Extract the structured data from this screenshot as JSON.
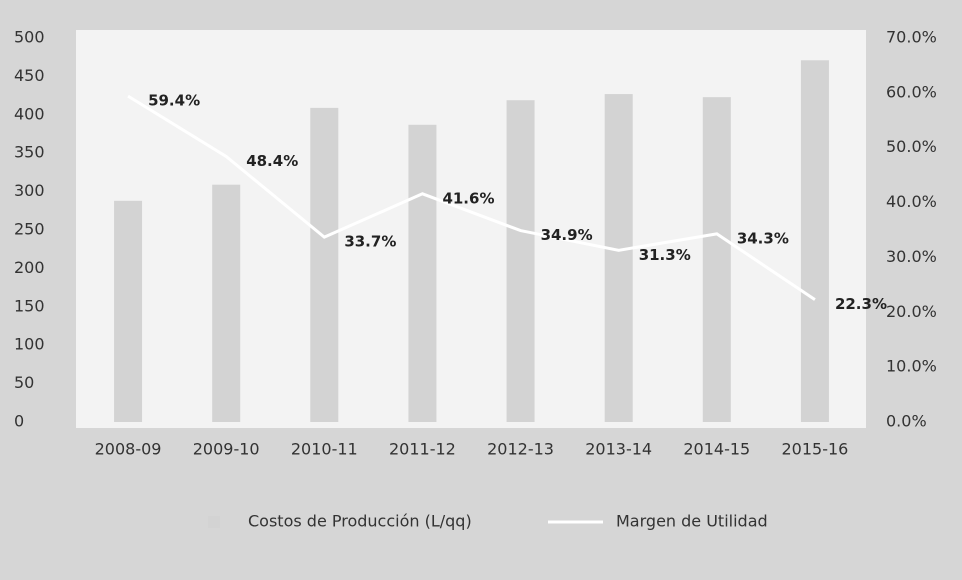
{
  "chart_data": {
    "type": "bar",
    "categories": [
      "2008-09",
      "2009-10",
      "2010-11",
      "2011-12",
      "2012-13",
      "2013-14",
      "2014-15",
      "2015-16"
    ],
    "series": [
      {
        "name": "Costos de Producción (L/qq)",
        "type": "bar",
        "color": "#d3d3d3",
        "values": [
          288,
          309,
          409,
          387,
          419,
          427,
          423,
          471
        ]
      },
      {
        "name": "Margen de Utilidad",
        "type": "line",
        "axis": "y2",
        "color": "#ffffff",
        "values": [
          59.4,
          48.4,
          33.7,
          41.6,
          34.9,
          31.3,
          34.3,
          22.3
        ],
        "value_labels": [
          "59.4%",
          "48.4%",
          "33.7%",
          "41.6%",
          "34.9%",
          "31.3%",
          "34.3%",
          "22.3%"
        ]
      }
    ],
    "ylim": [
      0,
      500
    ],
    "yticks": [
      0,
      50,
      100,
      150,
      200,
      250,
      300,
      350,
      400,
      450,
      500
    ],
    "y2lim": [
      0,
      70
    ],
    "y2ticks": [
      {
        "value": 0,
        "label": "0.0%"
      },
      {
        "value": 10,
        "label": "10.0%"
      },
      {
        "value": 20,
        "label": "20.0%"
      },
      {
        "value": 30,
        "label": "30.0%"
      },
      {
        "value": 40,
        "label": "40.0%"
      },
      {
        "value": 50,
        "label": "50.0%"
      },
      {
        "value": 60,
        "label": "60.0%"
      },
      {
        "value": 70,
        "label": "70.0%"
      }
    ],
    "legend": "bottom"
  }
}
